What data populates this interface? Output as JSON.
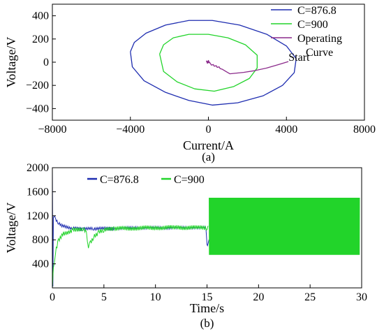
{
  "chart_data": [
    {
      "type": "line",
      "panel_label": "(a)",
      "xlabel": "Current/A",
      "ylabel": "Voltage/V",
      "xlim": [
        -8000,
        8000
      ],
      "ylim": [
        -500,
        500
      ],
      "xticks": [
        -8000,
        -4000,
        0,
        4000,
        8000
      ],
      "yticks": [
        -400,
        -200,
        0,
        200,
        400
      ],
      "xtick_labels": [
        "−8000",
        "−4000",
        "0",
        "4000",
        "8000"
      ],
      "ytick_labels": [
        "−400",
        "−200",
        "0",
        "200",
        "400"
      ],
      "legend_position": "top-right",
      "annotation": "Start",
      "series": [
        {
          "name": "C=876.8",
          "color": "#1e2db0",
          "shape": "ellipse",
          "center": [
            500,
            0
          ],
          "points": [
            [
              -4000,
              90
            ],
            [
              -3800,
              170
            ],
            [
              -3200,
              250
            ],
            [
              -2200,
              320
            ],
            [
              -1000,
              360
            ],
            [
              200,
              360
            ],
            [
              1600,
              320
            ],
            [
              3000,
              240
            ],
            [
              4000,
              140
            ],
            [
              4500,
              30
            ],
            [
              4400,
              -90
            ],
            [
              3800,
              -200
            ],
            [
              2800,
              -290
            ],
            [
              1500,
              -350
            ],
            [
              200,
              -370
            ],
            [
              -1000,
              -330
            ],
            [
              -2200,
              -260
            ],
            [
              -3300,
              -160
            ],
            [
              -3900,
              -40
            ],
            [
              -4000,
              90
            ]
          ]
        },
        {
          "name": "C=900",
          "color": "#22d42a",
          "shape": "ellipse",
          "center": [
            400,
            0
          ],
          "points": [
            [
              -2500,
              70
            ],
            [
              -2300,
              150
            ],
            [
              -1800,
              210
            ],
            [
              -1000,
              240
            ],
            [
              0,
              240
            ],
            [
              1000,
              210
            ],
            [
              1900,
              150
            ],
            [
              2500,
              60
            ],
            [
              2500,
              -50
            ],
            [
              2100,
              -140
            ],
            [
              1300,
              -210
            ],
            [
              300,
              -250
            ],
            [
              -700,
              -230
            ],
            [
              -1600,
              -170
            ],
            [
              -2300,
              -80
            ],
            [
              -2500,
              70
            ]
          ]
        },
        {
          "name": "Operating Curve",
          "legend_lines": [
            "Operating",
            "Curve"
          ],
          "color": "#8b2a8b",
          "points": [
            [
              4100,
              5
            ],
            [
              3600,
              -20
            ],
            [
              3000,
              -50
            ],
            [
              2300,
              -75
            ],
            [
              1800,
              -88
            ],
            [
              1400,
              -95
            ],
            [
              1100,
              -100
            ],
            [
              900,
              -80
            ],
            [
              700,
              -60
            ],
            [
              600,
              -55
            ],
            [
              550,
              -40
            ],
            [
              450,
              -45
            ],
            [
              400,
              -30
            ],
            [
              300,
              -35
            ],
            [
              250,
              -20
            ],
            [
              150,
              -25
            ],
            [
              100,
              -10
            ],
            [
              50,
              0
            ],
            [
              -50,
              5
            ],
            [
              -100,
              10
            ],
            [
              -50,
              -10
            ],
            [
              0,
              15
            ],
            [
              50,
              -5
            ],
            [
              -80,
              0
            ]
          ]
        }
      ]
    },
    {
      "type": "line",
      "panel_label": "(b)",
      "xlabel": "Time/s",
      "ylabel": "Voltage/V",
      "xlim": [
        0,
        30
      ],
      "ylim": [
        0,
        2000
      ],
      "xticks": [
        0,
        5,
        10,
        15,
        20,
        25,
        30
      ],
      "yticks": [
        400,
        800,
        1200,
        1600,
        2000
      ],
      "xtick_labels": [
        "0",
        "5",
        "10",
        "15",
        "20",
        "25",
        "30"
      ],
      "ytick_labels": [
        "400",
        "800",
        "1200",
        "1600",
        "2000"
      ],
      "legend_position": "top-left",
      "series": [
        {
          "name": "C=876.8",
          "color": "#1e2db0",
          "points": [
            [
              0,
              2000
            ],
            [
              0.05,
              0
            ],
            [
              0.1,
              1200
            ],
            [
              0.3,
              1150
            ],
            [
              0.6,
              1080
            ],
            [
              1.0,
              1030
            ],
            [
              2,
              990
            ],
            [
              3,
              980
            ],
            [
              4,
              985
            ],
            [
              6,
              990
            ],
            [
              8,
              1000
            ],
            [
              10,
              1000
            ],
            [
              12,
              1000
            ],
            [
              14,
              1005
            ],
            [
              14.9,
              1000
            ],
            [
              15.0,
              700
            ],
            [
              15.1,
              750
            ],
            [
              15.5,
              850
            ],
            [
              16,
              900
            ],
            [
              17,
              960
            ],
            [
              18,
              990
            ],
            [
              20,
              1010
            ],
            [
              22,
              1020
            ],
            [
              25,
              1020
            ],
            [
              28,
              1010
            ],
            [
              29.8,
              1010
            ]
          ],
          "noise_band": 25
        },
        {
          "name": "C=900",
          "color": "#22d42a",
          "points": [
            [
              0,
              0
            ],
            [
              0.1,
              300
            ],
            [
              0.3,
              600
            ],
            [
              0.6,
              800
            ],
            [
              1.0,
              900
            ],
            [
              2,
              960
            ],
            [
              3,
              990
            ],
            [
              3.3,
              900
            ],
            [
              3.5,
              700
            ],
            [
              3.7,
              760
            ],
            [
              4.0,
              850
            ],
            [
              4.5,
              920
            ],
            [
              5,
              960
            ],
            [
              6,
              985
            ],
            [
              8,
              995
            ],
            [
              10,
              1000
            ],
            [
              12,
              1005
            ],
            [
              14,
              1000
            ],
            [
              15,
              1000
            ],
            [
              15.2,
              1000
            ],
            [
              30,
              1000
            ]
          ],
          "oscillation": {
            "start": 15.2,
            "end": 29.8,
            "upper": 1500,
            "lower": 550
          },
          "noise_band": 40
        }
      ]
    }
  ]
}
